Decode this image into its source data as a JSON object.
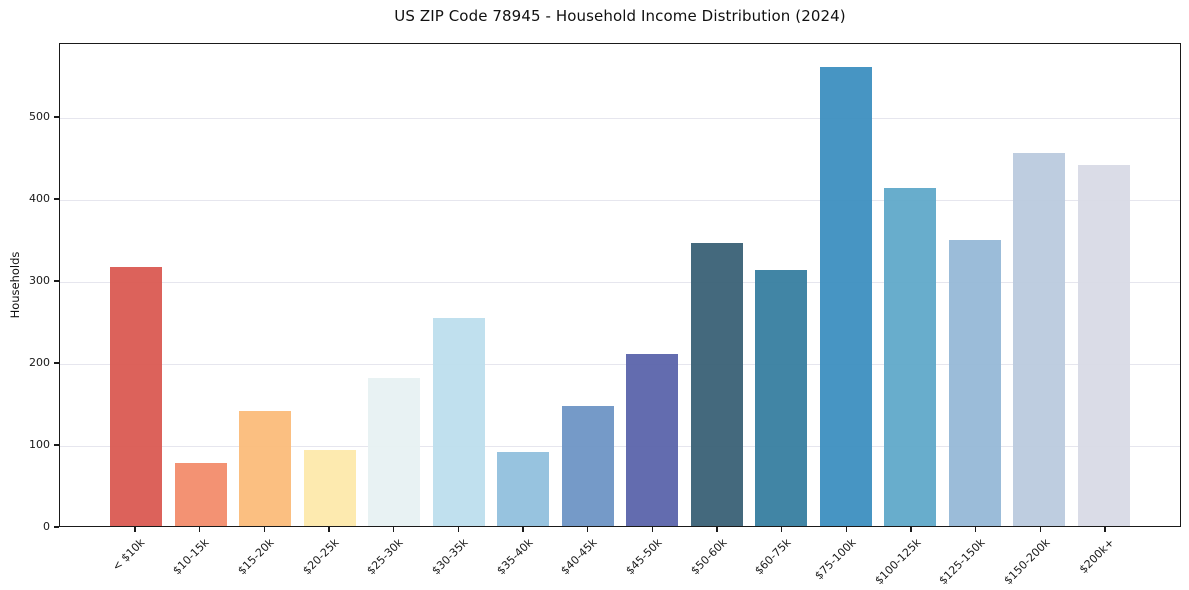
{
  "chart_data": {
    "type": "bar",
    "title": "US ZIP Code 78945 - Household Income Distribution (2024)",
    "xlabel": "",
    "ylabel": "Households",
    "categories": [
      "< $10k",
      "$10-15k",
      "$15-20k",
      "$20-25k",
      "$25-30k",
      "$30-35k",
      "$35-40k",
      "$40-45k",
      "$45-50k",
      "$50-60k",
      "$60-75k",
      "$75-100k",
      "$100-125k",
      "$125-150k",
      "$150-200k",
      "$200k+"
    ],
    "values": [
      317,
      77,
      141,
      93,
      181,
      255,
      90,
      147,
      211,
      346,
      313,
      562,
      414,
      350,
      457,
      442
    ],
    "bar_colors": [
      "#d9564f",
      "#f28a68",
      "#fbba77",
      "#fde8a9",
      "#e6f1f2",
      "#bbdeed",
      "#8fbedd",
      "#6a92c4",
      "#5761a9",
      "#365e73",
      "#337c9e",
      "#398dbe",
      "#5da7c8",
      "#93b7d6",
      "#b9c9de",
      "#d7d9e5"
    ],
    "ylim": [
      0,
      590
    ],
    "yticks": [
      0,
      100,
      200,
      300,
      400,
      500
    ],
    "grid": "horizontal",
    "legend": "none",
    "background_color": "#ffffff",
    "spine_color": "#1a1a1a",
    "grid_color": "#e6e6ee"
  }
}
